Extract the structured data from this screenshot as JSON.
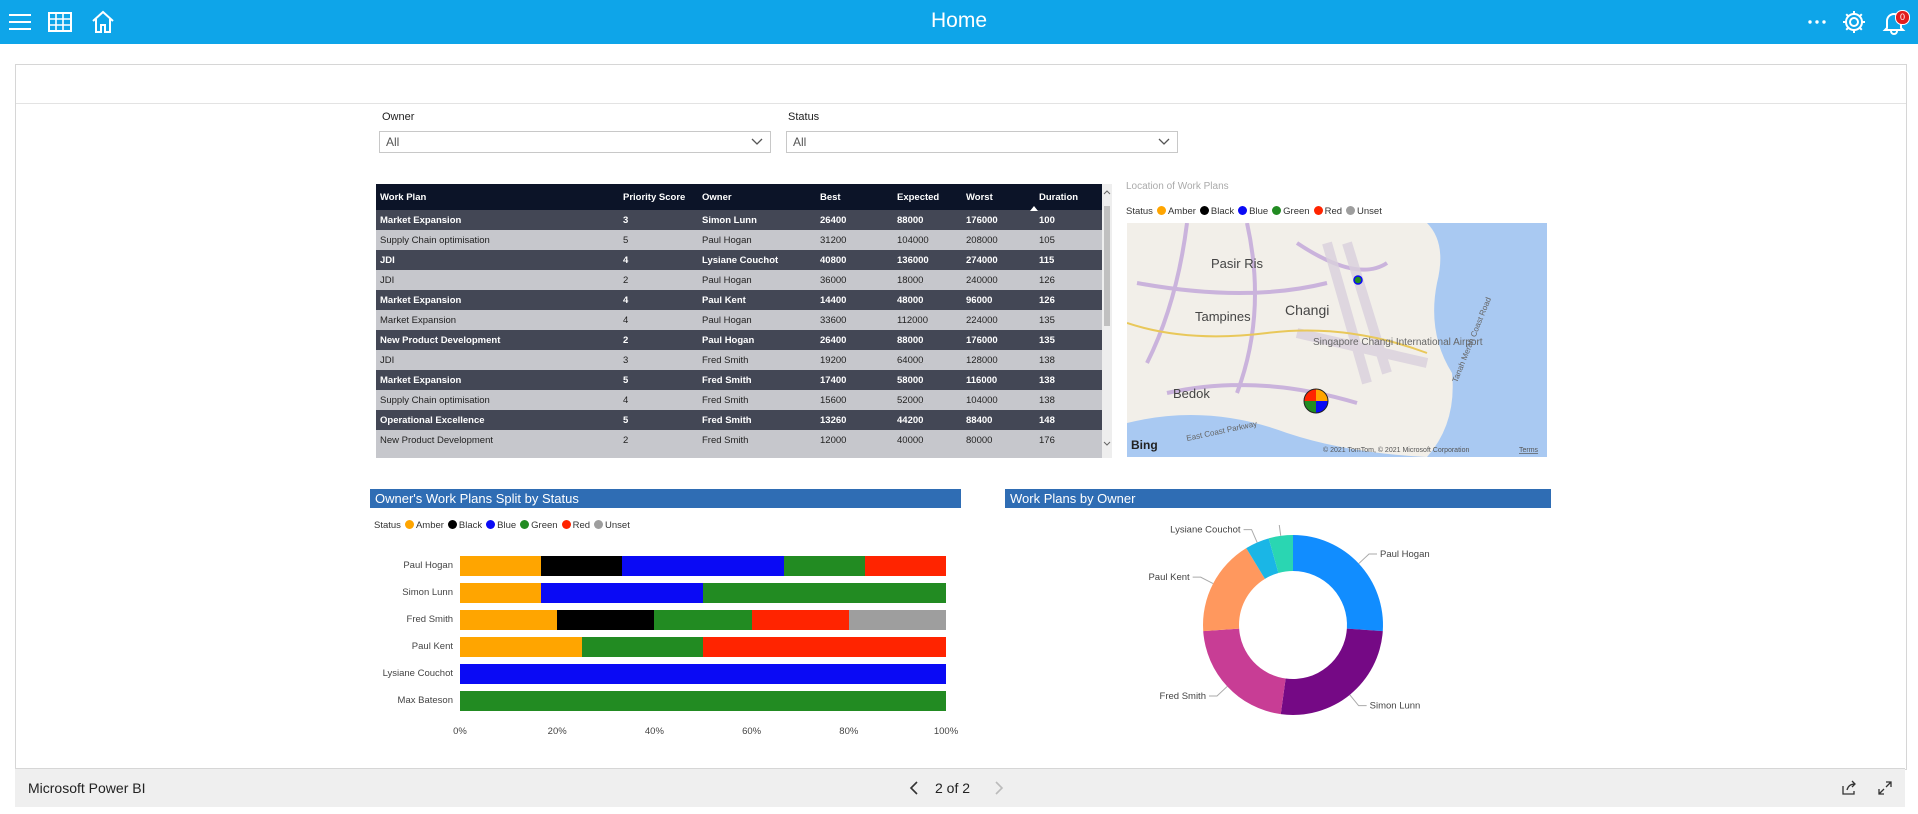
{
  "header": {
    "title": "Home",
    "notification_count": "0"
  },
  "filters": {
    "owner": {
      "label": "Owner",
      "value": "All"
    },
    "status": {
      "label": "Status",
      "value": "All"
    }
  },
  "table": {
    "columns": [
      "Work Plan",
      "Priority Score",
      "Owner",
      "Best",
      "Expected",
      "Worst",
      "Duration"
    ],
    "rows": [
      [
        "Market Expansion",
        "3",
        "Simon Lunn",
        "26400",
        "88000",
        "176000",
        "100"
      ],
      [
        "Supply Chain optimisation",
        "5",
        "Paul Hogan",
        "31200",
        "104000",
        "208000",
        "105"
      ],
      [
        "JDI",
        "4",
        "Lysiane Couchot",
        "40800",
        "136000",
        "274000",
        "115"
      ],
      [
        "JDI",
        "2",
        "Paul Hogan",
        "36000",
        "18000",
        "240000",
        "126"
      ],
      [
        "Market Expansion",
        "4",
        "Paul Kent",
        "14400",
        "48000",
        "96000",
        "126"
      ],
      [
        "Market Expansion",
        "4",
        "Paul Hogan",
        "33600",
        "112000",
        "224000",
        "135"
      ],
      [
        "New Product Development",
        "2",
        "Paul Hogan",
        "26400",
        "88000",
        "176000",
        "135"
      ],
      [
        "JDI",
        "3",
        "Fred Smith",
        "19200",
        "64000",
        "128000",
        "138"
      ],
      [
        "Market Expansion",
        "5",
        "Fred Smith",
        "17400",
        "58000",
        "116000",
        "138"
      ],
      [
        "Supply Chain optimisation",
        "4",
        "Fred Smith",
        "15600",
        "52000",
        "104000",
        "138"
      ],
      [
        "Operational Excellence",
        "5",
        "Fred Smith",
        "13260",
        "44200",
        "88400",
        "148"
      ],
      [
        "New Product Development",
        "2",
        "Fred Smith",
        "12000",
        "40000",
        "80000",
        "176"
      ]
    ]
  },
  "map": {
    "title": "Location of Work Plans",
    "legend_title": "Status",
    "places": [
      "Pasir Ris",
      "Tampines",
      "Changi",
      "Singapore Changi International Airport",
      "Bedok",
      "East Coast Parkway",
      "Tanah Merah Coast Road"
    ],
    "attribution": "© 2021 TomTom, © 2021 Microsoft Corporation",
    "terms": "Terms",
    "provider": "Bing"
  },
  "status_legend": [
    {
      "name": "Amber",
      "color": "#ffa500"
    },
    {
      "name": "Black",
      "color": "#000000"
    },
    {
      "name": "Blue",
      "color": "#0a0af5"
    },
    {
      "name": "Green",
      "color": "#228b22"
    },
    {
      "name": "Red",
      "color": "#ff2400"
    },
    {
      "name": "Unset",
      "color": "#9e9e9e"
    }
  ],
  "bar_chart_title": "Owner's Work Plans Split by Status",
  "donut_chart_title": "Work Plans by Owner",
  "chart_data": [
    {
      "type": "bar",
      "stacked": "100%",
      "orientation": "horizontal",
      "title": "Owner's Work Plans Split by Status",
      "legend_title": "Status",
      "categories": [
        "Paul Hogan",
        "Simon Lunn",
        "Fred Smith",
        "Paul Kent",
        "Lysiane Couchot",
        "Max Bateson"
      ],
      "x_ticks": [
        "0%",
        "20%",
        "40%",
        "60%",
        "80%",
        "100%"
      ],
      "series": [
        {
          "name": "Amber",
          "values": [
            16.7,
            16.7,
            20,
            25,
            0,
            0
          ]
        },
        {
          "name": "Black",
          "values": [
            16.7,
            0,
            20,
            0,
            0,
            0
          ]
        },
        {
          "name": "Blue",
          "values": [
            33.3,
            33.3,
            0,
            0,
            100,
            0
          ]
        },
        {
          "name": "Green",
          "values": [
            16.7,
            50,
            20,
            25,
            0,
            100
          ]
        },
        {
          "name": "Red",
          "values": [
            16.7,
            0,
            20,
            50,
            0,
            0
          ]
        },
        {
          "name": "Unset",
          "values": [
            0,
            0,
            20,
            0,
            0,
            0
          ]
        }
      ]
    },
    {
      "type": "pie",
      "donut": true,
      "title": "Work Plans by Owner",
      "slices": [
        {
          "name": "Paul Hogan",
          "value": 6,
          "color": "#118dff"
        },
        {
          "name": "Simon Lunn",
          "value": 6,
          "color": "#750985"
        },
        {
          "name": "Fred Smith",
          "value": 5,
          "color": "#c83d95"
        },
        {
          "name": "Paul Kent",
          "value": 4,
          "color": "#ff985e"
        },
        {
          "name": "Lysiane Couchot",
          "value": 1,
          "color": "#1ab6e6"
        },
        {
          "name": "Max Bateson",
          "value": 1,
          "color": "#2ad6b2"
        }
      ]
    }
  ],
  "footer": {
    "brand": "Microsoft Power BI",
    "page": "2 of 2"
  }
}
